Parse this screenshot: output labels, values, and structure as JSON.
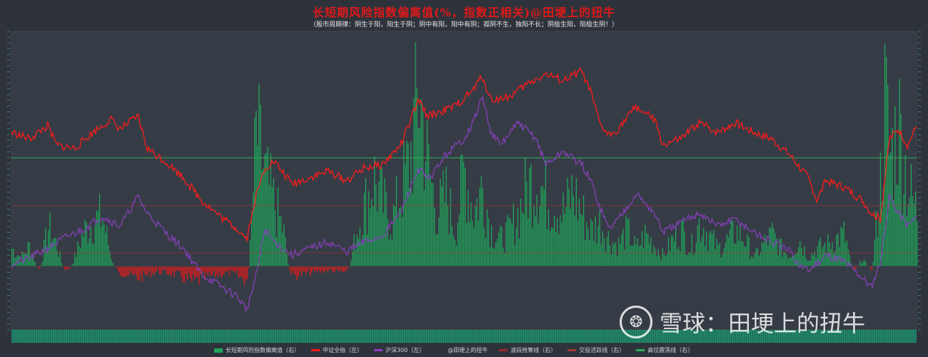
{
  "title": "长短期风险指数偏离值(%，指数正相关)@田埂上的扭牛",
  "subtitle": "（股市周期律：阴生于阳，阳生于阴；阴中有阳，阳中有阴；孤阴不生，独阳不长；阴极生阳，阳极生阴！）",
  "watermark": {
    "logo": "❂",
    "text": "雪球：田埂上的扭牛"
  },
  "legend": [
    {
      "label": "长短期风险指数偏离值（右）",
      "color": "#1ea65a",
      "kind": "box"
    },
    {
      "label": "中证全指（左）",
      "color": "#ff1a1a",
      "kind": "line"
    },
    {
      "label": "沪深300（左）",
      "color": "#8a3fc0",
      "kind": "line"
    },
    {
      "label": "@田埂上的扭牛",
      "color": "#2e333b",
      "kind": "none"
    },
    {
      "label": "波段抢筹线（右）",
      "color": "#9b2a2a",
      "kind": "line"
    },
    {
      "label": "交投活跃线（右）",
      "color": "#a33a3a",
      "kind": "line"
    },
    {
      "label": "高位震荡线（右）",
      "color": "#2fae55",
      "kind": "line"
    }
  ],
  "colors": {
    "background": "#2e333b",
    "green": "#1ea65a",
    "red_bar": "#e31a1a",
    "csi_all": "#ff1a1a",
    "hs300": "#8a3fc0",
    "ref_green": "#2fae55",
    "ref_red": "#b03030"
  },
  "chart_data": {
    "type": "bar+line",
    "title": "长短期风险指数偏离值(%，指数正相关)@田埂上的扭牛",
    "reference_lines": [
      {
        "name": "高位震荡线（右）",
        "y_frac": 0.77
      },
      {
        "name": "交投活跃线（右）",
        "y_frac": 0.365
      },
      {
        "name": "波段抢筹线（右）",
        "y_frac": 0.087
      }
    ],
    "deviation_series": [
      {
        "t": 0.0,
        "v": 0.1
      },
      {
        "t": 0.01,
        "v": 0.05
      },
      {
        "t": 0.02,
        "v": 0.12
      },
      {
        "t": 0.03,
        "v": -0.05
      },
      {
        "t": 0.04,
        "v": 0.22
      },
      {
        "t": 0.05,
        "v": 0.12
      },
      {
        "t": 0.06,
        "v": -0.08
      },
      {
        "t": 0.08,
        "v": 0.2
      },
      {
        "t": 0.09,
        "v": 0.25
      },
      {
        "t": 0.1,
        "v": 0.28
      },
      {
        "t": 0.11,
        "v": 0.05
      },
      {
        "t": 0.12,
        "v": -0.1
      },
      {
        "t": 0.14,
        "v": -0.18
      },
      {
        "t": 0.16,
        "v": -0.08
      },
      {
        "t": 0.18,
        "v": -0.12
      },
      {
        "t": 0.2,
        "v": -0.25
      },
      {
        "t": 0.22,
        "v": -0.15
      },
      {
        "t": 0.24,
        "v": -0.1
      },
      {
        "t": 0.26,
        "v": -0.22
      },
      {
        "t": 0.27,
        "v": 0.75
      },
      {
        "t": 0.28,
        "v": 0.5
      },
      {
        "t": 0.29,
        "v": 0.35
      },
      {
        "t": 0.3,
        "v": 0.2
      },
      {
        "t": 0.31,
        "v": -0.15
      },
      {
        "t": 0.33,
        "v": -0.1
      },
      {
        "t": 0.35,
        "v": -0.06
      },
      {
        "t": 0.37,
        "v": -0.1
      },
      {
        "t": 0.38,
        "v": 0.18
      },
      {
        "t": 0.4,
        "v": 0.5
      },
      {
        "t": 0.41,
        "v": 0.35
      },
      {
        "t": 0.42,
        "v": 0.25
      },
      {
        "t": 0.44,
        "v": 0.6
      },
      {
        "t": 0.45,
        "v": 0.99
      },
      {
        "t": 0.46,
        "v": 0.55
      },
      {
        "t": 0.47,
        "v": 0.3
      },
      {
        "t": 0.48,
        "v": 0.4
      },
      {
        "t": 0.49,
        "v": 0.2
      },
      {
        "t": 0.5,
        "v": 0.55
      },
      {
        "t": 0.51,
        "v": 0.3
      },
      {
        "t": 0.52,
        "v": 0.45
      },
      {
        "t": 0.53,
        "v": 0.2
      },
      {
        "t": 0.54,
        "v": 0.15
      },
      {
        "t": 0.55,
        "v": 0.2
      },
      {
        "t": 0.56,
        "v": 0.3
      },
      {
        "t": 0.57,
        "v": 0.45
      },
      {
        "t": 0.58,
        "v": 0.5
      },
      {
        "t": 0.59,
        "v": 0.4
      },
      {
        "t": 0.6,
        "v": 0.35
      },
      {
        "t": 0.61,
        "v": 0.3
      },
      {
        "t": 0.62,
        "v": 0.42
      },
      {
        "t": 0.63,
        "v": 0.3
      },
      {
        "t": 0.64,
        "v": 0.2
      },
      {
        "t": 0.65,
        "v": 0.25
      },
      {
        "t": 0.66,
        "v": 0.15
      },
      {
        "t": 0.67,
        "v": 0.12
      },
      {
        "t": 0.68,
        "v": 0.2
      },
      {
        "t": 0.69,
        "v": 0.1
      },
      {
        "t": 0.7,
        "v": 0.18
      },
      {
        "t": 0.71,
        "v": 0.12
      },
      {
        "t": 0.72,
        "v": 0.06
      },
      {
        "t": 0.73,
        "v": 0.15
      },
      {
        "t": 0.74,
        "v": 0.2
      },
      {
        "t": 0.75,
        "v": 0.1
      },
      {
        "t": 0.76,
        "v": 0.25
      },
      {
        "t": 0.77,
        "v": 0.18
      },
      {
        "t": 0.78,
        "v": 0.1
      },
      {
        "t": 0.79,
        "v": 0.14
      },
      {
        "t": 0.8,
        "v": 0.2
      },
      {
        "t": 0.81,
        "v": 0.15
      },
      {
        "t": 0.82,
        "v": 0.05
      },
      {
        "t": 0.83,
        "v": 0.12
      },
      {
        "t": 0.84,
        "v": 0.18
      },
      {
        "t": 0.85,
        "v": 0.1
      },
      {
        "t": 0.86,
        "v": 0.06
      },
      {
        "t": 0.87,
        "v": 0.15
      },
      {
        "t": 0.88,
        "v": 0.05
      },
      {
        "t": 0.89,
        "v": 0.1
      },
      {
        "t": 0.9,
        "v": 0.12
      },
      {
        "t": 0.91,
        "v": 0.15
      },
      {
        "t": 0.92,
        "v": 0.18
      },
      {
        "t": 0.93,
        "v": -0.05
      },
      {
        "t": 0.94,
        "v": 0.05
      },
      {
        "t": 0.95,
        "v": -0.05
      },
      {
        "t": 0.96,
        "v": 0.5
      },
      {
        "t": 0.965,
        "v": 0.95
      },
      {
        "t": 0.97,
        "v": 0.6
      },
      {
        "t": 0.98,
        "v": 0.8
      },
      {
        "t": 0.99,
        "v": 0.45
      },
      {
        "t": 1.0,
        "v": 0.3
      }
    ],
    "csi_all_series": [
      {
        "t": 0.0,
        "v": 0.7
      },
      {
        "t": 0.02,
        "v": 0.66
      },
      {
        "t": 0.04,
        "v": 0.74
      },
      {
        "t": 0.05,
        "v": 0.62
      },
      {
        "t": 0.07,
        "v": 0.6
      },
      {
        "t": 0.09,
        "v": 0.7
      },
      {
        "t": 0.11,
        "v": 0.78
      },
      {
        "t": 0.12,
        "v": 0.72
      },
      {
        "t": 0.14,
        "v": 0.8
      },
      {
        "t": 0.15,
        "v": 0.6
      },
      {
        "t": 0.17,
        "v": 0.52
      },
      {
        "t": 0.19,
        "v": 0.42
      },
      {
        "t": 0.21,
        "v": 0.28
      },
      {
        "t": 0.23,
        "v": 0.18
      },
      {
        "t": 0.25,
        "v": 0.1
      },
      {
        "t": 0.26,
        "v": 0.04
      },
      {
        "t": 0.27,
        "v": 0.3
      },
      {
        "t": 0.28,
        "v": 0.48
      },
      {
        "t": 0.29,
        "v": 0.52
      },
      {
        "t": 0.31,
        "v": 0.38
      },
      {
        "t": 0.33,
        "v": 0.42
      },
      {
        "t": 0.35,
        "v": 0.46
      },
      {
        "t": 0.37,
        "v": 0.4
      },
      {
        "t": 0.39,
        "v": 0.48
      },
      {
        "t": 0.41,
        "v": 0.5
      },
      {
        "t": 0.43,
        "v": 0.62
      },
      {
        "t": 0.45,
        "v": 0.9
      },
      {
        "t": 0.46,
        "v": 0.8
      },
      {
        "t": 0.47,
        "v": 0.82
      },
      {
        "t": 0.49,
        "v": 0.86
      },
      {
        "t": 0.51,
        "v": 0.96
      },
      {
        "t": 0.52,
        "v": 1.05
      },
      {
        "t": 0.53,
        "v": 0.9
      },
      {
        "t": 0.55,
        "v": 0.92
      },
      {
        "t": 0.57,
        "v": 1.0
      },
      {
        "t": 0.59,
        "v": 1.06
      },
      {
        "t": 0.61,
        "v": 1.02
      },
      {
        "t": 0.63,
        "v": 1.08
      },
      {
        "t": 0.64,
        "v": 0.95
      },
      {
        "t": 0.65,
        "v": 0.75
      },
      {
        "t": 0.66,
        "v": 0.68
      },
      {
        "t": 0.67,
        "v": 0.72
      },
      {
        "t": 0.69,
        "v": 0.86
      },
      {
        "t": 0.71,
        "v": 0.78
      },
      {
        "t": 0.72,
        "v": 0.62
      },
      {
        "t": 0.74,
        "v": 0.66
      },
      {
        "t": 0.76,
        "v": 0.76
      },
      {
        "t": 0.78,
        "v": 0.7
      },
      {
        "t": 0.8,
        "v": 0.76
      },
      {
        "t": 0.82,
        "v": 0.7
      },
      {
        "t": 0.84,
        "v": 0.66
      },
      {
        "t": 0.86,
        "v": 0.56
      },
      {
        "t": 0.88,
        "v": 0.42
      },
      {
        "t": 0.89,
        "v": 0.28
      },
      {
        "t": 0.9,
        "v": 0.4
      },
      {
        "t": 0.92,
        "v": 0.36
      },
      {
        "t": 0.94,
        "v": 0.28
      },
      {
        "t": 0.95,
        "v": 0.2
      },
      {
        "t": 0.96,
        "v": 0.16
      },
      {
        "t": 0.97,
        "v": 0.66
      },
      {
        "t": 0.98,
        "v": 0.72
      },
      {
        "t": 0.99,
        "v": 0.62
      },
      {
        "t": 1.0,
        "v": 0.74
      }
    ],
    "hs300_series": [
      {
        "t": 0.0,
        "v": -0.12
      },
      {
        "t": 0.02,
        "v": -0.08
      },
      {
        "t": 0.04,
        "v": -0.02
      },
      {
        "t": 0.06,
        "v": 0.05
      },
      {
        "t": 0.08,
        "v": 0.1
      },
      {
        "t": 0.1,
        "v": 0.18
      },
      {
        "t": 0.12,
        "v": 0.12
      },
      {
        "t": 0.14,
        "v": 0.3
      },
      {
        "t": 0.15,
        "v": 0.2
      },
      {
        "t": 0.17,
        "v": 0.08
      },
      {
        "t": 0.19,
        "v": -0.02
      },
      {
        "t": 0.21,
        "v": -0.18
      },
      {
        "t": 0.23,
        "v": -0.25
      },
      {
        "t": 0.25,
        "v": -0.32
      },
      {
        "t": 0.26,
        "v": -0.4
      },
      {
        "t": 0.27,
        "v": -0.2
      },
      {
        "t": 0.28,
        "v": 0.1
      },
      {
        "t": 0.29,
        "v": 0.02
      },
      {
        "t": 0.31,
        "v": -0.06
      },
      {
        "t": 0.33,
        "v": -0.02
      },
      {
        "t": 0.35,
        "v": 0.02
      },
      {
        "t": 0.37,
        "v": -0.04
      },
      {
        "t": 0.39,
        "v": 0.02
      },
      {
        "t": 0.41,
        "v": 0.06
      },
      {
        "t": 0.43,
        "v": 0.2
      },
      {
        "t": 0.45,
        "v": 0.48
      },
      {
        "t": 0.46,
        "v": 0.4
      },
      {
        "t": 0.48,
        "v": 0.56
      },
      {
        "t": 0.5,
        "v": 0.66
      },
      {
        "t": 0.51,
        "v": 0.76
      },
      {
        "t": 0.52,
        "v": 0.92
      },
      {
        "t": 0.53,
        "v": 0.7
      },
      {
        "t": 0.54,
        "v": 0.62
      },
      {
        "t": 0.56,
        "v": 0.76
      },
      {
        "t": 0.58,
        "v": 0.66
      },
      {
        "t": 0.59,
        "v": 0.5
      },
      {
        "t": 0.61,
        "v": 0.58
      },
      {
        "t": 0.63,
        "v": 0.5
      },
      {
        "t": 0.64,
        "v": 0.4
      },
      {
        "t": 0.65,
        "v": 0.24
      },
      {
        "t": 0.66,
        "v": 0.1
      },
      {
        "t": 0.67,
        "v": 0.16
      },
      {
        "t": 0.69,
        "v": 0.32
      },
      {
        "t": 0.71,
        "v": 0.2
      },
      {
        "t": 0.72,
        "v": 0.08
      },
      {
        "t": 0.74,
        "v": 0.14
      },
      {
        "t": 0.76,
        "v": 0.2
      },
      {
        "t": 0.78,
        "v": 0.12
      },
      {
        "t": 0.8,
        "v": 0.16
      },
      {
        "t": 0.82,
        "v": 0.08
      },
      {
        "t": 0.84,
        "v": 0.02
      },
      {
        "t": 0.86,
        "v": -0.04
      },
      {
        "t": 0.87,
        "v": -0.12
      },
      {
        "t": 0.88,
        "v": -0.16
      },
      {
        "t": 0.9,
        "v": -0.06
      },
      {
        "t": 0.92,
        "v": -0.1
      },
      {
        "t": 0.94,
        "v": -0.2
      },
      {
        "t": 0.95,
        "v": -0.26
      },
      {
        "t": 0.96,
        "v": -0.1
      },
      {
        "t": 0.97,
        "v": 0.3
      },
      {
        "t": 0.98,
        "v": 0.2
      },
      {
        "t": 0.99,
        "v": 0.12
      },
      {
        "t": 1.0,
        "v": 0.18
      }
    ]
  }
}
